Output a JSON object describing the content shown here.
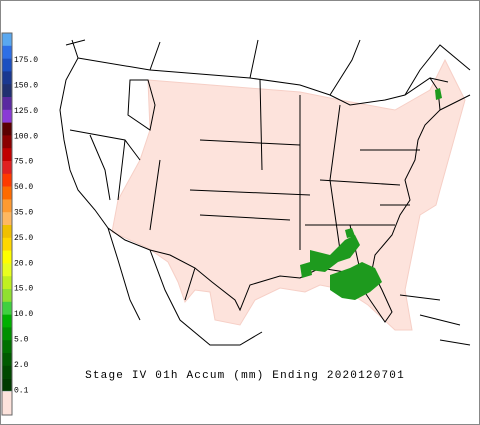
{
  "legend": {
    "labels": [
      "175.0",
      "150.0",
      "125.0",
      "100.0",
      "75.0",
      "50.0",
      "35.0",
      "25.0",
      "20.0",
      "15.0",
      "10.0",
      "5.0",
      "2.0",
      "0.1"
    ]
  },
  "caption": "Stage IV 01h Accum (mm) Ending 2020120701"
}
